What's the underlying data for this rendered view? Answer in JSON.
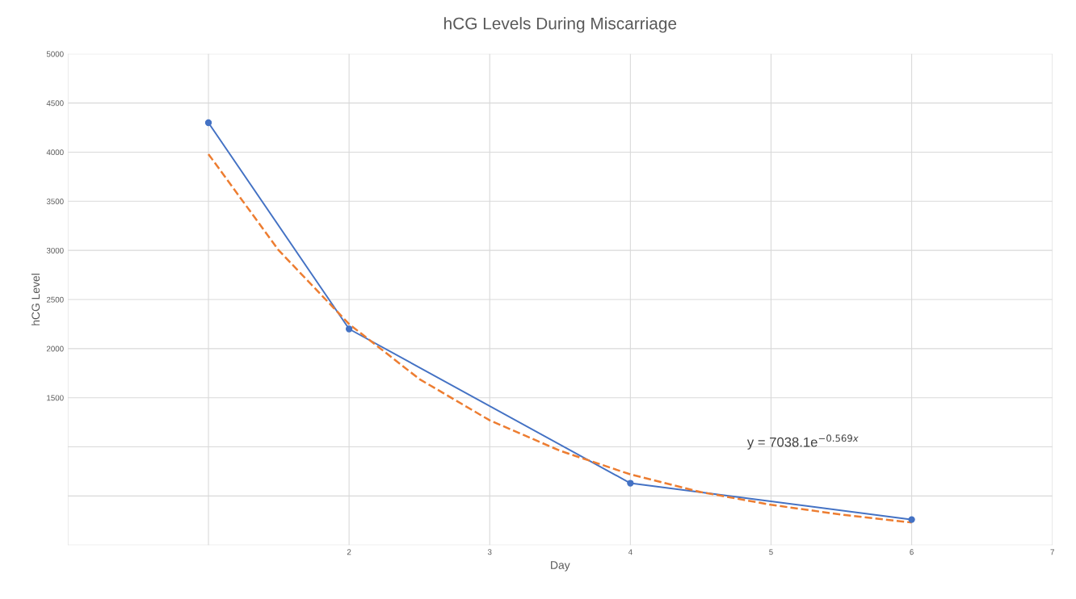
{
  "chart_data": {
    "type": "line",
    "title": "hCG Levels During Miscarriage",
    "xlabel": "Day",
    "ylabel": "hCG Level",
    "x": [
      1,
      2,
      4,
      6
    ],
    "series": [
      {
        "color": "#4472c4",
        "values": [
          4300,
          2200,
          630,
          260
        ],
        "marker": "circle",
        "line_style": "solid"
      },
      {
        "type": "line",
        "color": "#ed7d31",
        "x": [
          1,
          1.5,
          2,
          2.5,
          3,
          3.5,
          4,
          4.5,
          5,
          5.5,
          6
        ],
        "values": [
          3980,
          3000,
          2250,
          1690,
          1270,
          960,
          720,
          540,
          410,
          310,
          230
        ],
        "marker": "none",
        "line_style": "dashed"
      }
    ],
    "xlim": [
      0,
      7
    ],
    "xticks": [
      {
        "value": 0,
        "label": null
      },
      {
        "value": 1,
        "label": null
      },
      2,
      3,
      4,
      5,
      6,
      7
    ],
    "ylim": [
      0,
      5000
    ],
    "yticks": [
      {
        "value": 0,
        "label": null
      },
      {
        "value": 500,
        "label": null
      },
      {
        "value": 1000,
        "label": null
      },
      1500,
      2000,
      2500,
      3000,
      3500,
      4000,
      4500,
      5000
    ],
    "grid": true,
    "legend": false,
    "annotations": [
      "y = 7038.1e$^{−0.569x}$"
    ]
  }
}
